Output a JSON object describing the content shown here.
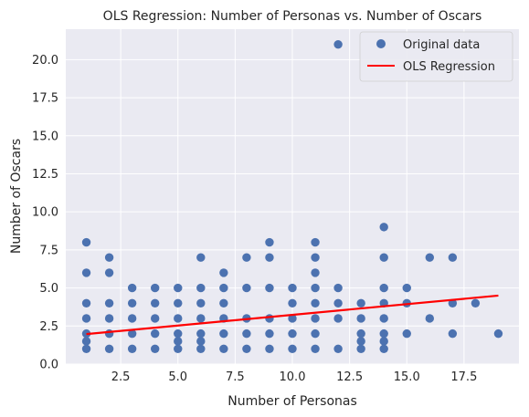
{
  "chart_data": {
    "type": "scatter",
    "title": "OLS Regression: Number of Personas vs. Number of Oscars",
    "xlabel": "Number of Personas",
    "ylabel": "Number of Oscars",
    "xlim": [
      0.1,
      19.9
    ],
    "ylim": [
      0,
      22
    ],
    "xticks": [
      2.5,
      5.0,
      7.5,
      10.0,
      12.5,
      15.0,
      17.5
    ],
    "xtick_labels": [
      "2.5",
      "5.0",
      "7.5",
      "10.0",
      "12.5",
      "15.0",
      "17.5"
    ],
    "yticks": [
      0,
      2.5,
      5,
      7.5,
      10,
      12.5,
      15,
      17.5,
      20
    ],
    "ytick_labels": [
      "0.0",
      "2.5",
      "5.0",
      "7.5",
      "10.0",
      "12.5",
      "15.0",
      "17.5",
      "20.0"
    ],
    "grid": true,
    "legend_position": "top-right",
    "series": [
      {
        "name": "Original data",
        "kind": "scatter",
        "color": "#4c72b0",
        "x": [
          1,
          1,
          1,
          1,
          1,
          1,
          1,
          2,
          2,
          2,
          2,
          2,
          2,
          3,
          3,
          3,
          3,
          3,
          4,
          4,
          4,
          4,
          4,
          5,
          5,
          5,
          5,
          5,
          5,
          6,
          6,
          6,
          6,
          6,
          6,
          6,
          7,
          7,
          7,
          7,
          7,
          7,
          8,
          8,
          8,
          8,
          8,
          9,
          9,
          9,
          9,
          9,
          9,
          10,
          10,
          10,
          10,
          10,
          11,
          11,
          11,
          11,
          11,
          11,
          11,
          11,
          12,
          12,
          12,
          12,
          12,
          13,
          13,
          13,
          13,
          13,
          14,
          14,
          14,
          14,
          14,
          14,
          14,
          14,
          15,
          15,
          15,
          16,
          16,
          17,
          17,
          17,
          18,
          19
        ],
        "y": [
          1,
          2,
          3,
          4,
          6,
          8,
          1.5,
          1,
          2,
          3,
          4,
          6,
          7,
          1,
          2,
          3,
          4,
          5,
          1,
          2,
          3,
          4,
          5,
          1,
          2,
          3,
          4,
          5,
          1.5,
          1,
          2,
          3,
          4,
          5,
          7,
          1.5,
          1,
          2,
          3,
          4,
          5,
          6,
          1,
          2,
          3,
          5,
          7,
          1,
          2,
          3,
          5,
          7,
          8,
          1,
          2,
          3,
          4,
          5,
          1,
          2,
          3,
          4,
          5,
          6,
          7,
          8,
          1,
          3,
          4,
          5,
          21,
          1,
          2,
          3,
          4,
          1.5,
          1,
          2,
          3,
          4,
          5,
          7,
          9,
          1.5,
          2,
          4,
          5,
          3,
          7,
          2,
          4,
          7,
          4,
          2
        ]
      },
      {
        "name": "OLS Regression",
        "kind": "line",
        "color": "#ff0000",
        "x": [
          1,
          19
        ],
        "y": [
          1.97,
          4.5
        ]
      }
    ]
  },
  "legend": {
    "items": [
      {
        "label": "Original data",
        "marker": "circle",
        "color": "#4c72b0"
      },
      {
        "label": "OLS Regression",
        "marker": "line",
        "color": "#ff0000"
      }
    ]
  },
  "colors": {
    "plot_bg": "#eaeaf2",
    "grid": "#ffffff",
    "scatter": "#4c72b0",
    "regression": "#ff0000"
  }
}
